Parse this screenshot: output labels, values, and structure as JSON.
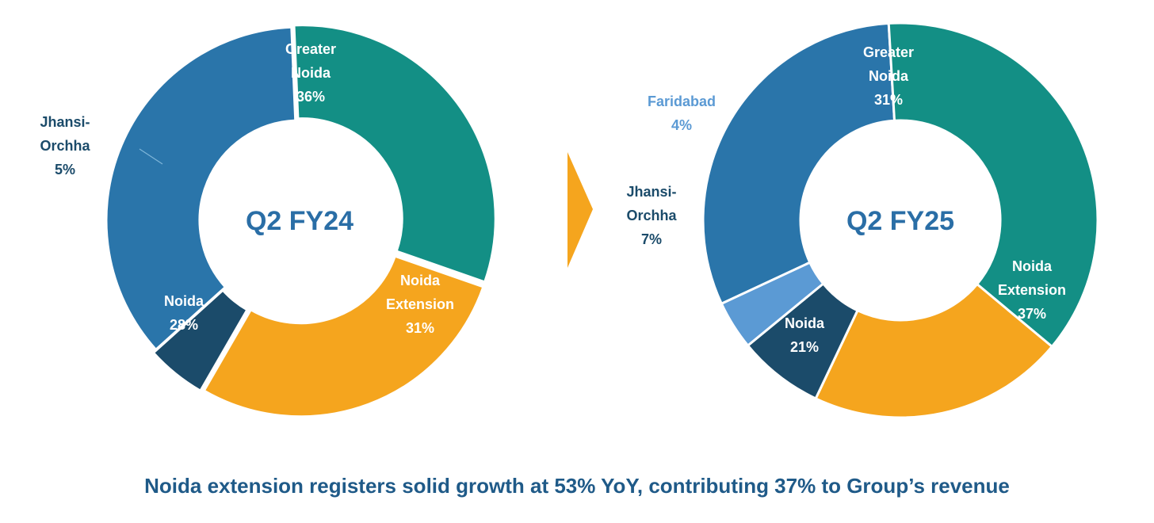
{
  "caption": "Noida extension registers solid growth at 53% YoY, contributing 37% to Group’s revenue",
  "colors": {
    "greater_noida": "#2a75aa",
    "noida_extension": "#138f85",
    "noida": "#f5a51e",
    "jhansi_orchha": "#1b4b6a",
    "faridabad": "#5b9ad4",
    "arrow": "#f5a51e",
    "center_text": "#2a6ea6",
    "caption": "#1f5a88"
  },
  "chart_data": [
    {
      "type": "pie",
      "center_label": "Q2 FY24",
      "slices": [
        {
          "name": [
            "Greater",
            "Noida"
          ],
          "value": 36,
          "label": "36%",
          "color": "#2a75aa"
        },
        {
          "name": [
            "Noida",
            "Extension"
          ],
          "value": 31,
          "label": "31%",
          "color": "#138f85"
        },
        {
          "name": [
            "Noida"
          ],
          "value": 28,
          "label": "28%",
          "color": "#f5a51e"
        },
        {
          "name": [
            "Jhansi-",
            "Orchha"
          ],
          "value": 5,
          "label": "5%",
          "color": "#1b4b6a"
        }
      ]
    },
    {
      "type": "pie",
      "center_label": "Q2 FY25",
      "slices": [
        {
          "name": [
            "Greater",
            "Noida"
          ],
          "value": 31,
          "label": "31%",
          "color": "#2a75aa"
        },
        {
          "name": [
            "Noida",
            "Extension"
          ],
          "value": 37,
          "label": "37%",
          "color": "#138f85"
        },
        {
          "name": [
            "Noida"
          ],
          "value": 21,
          "label": "21%",
          "color": "#f5a51e"
        },
        {
          "name": [
            "Jhansi-",
            "Orchha"
          ],
          "value": 7,
          "label": "7%",
          "color": "#1b4b6a"
        },
        {
          "name": [
            "Faridabad"
          ],
          "value": 4,
          "label": "4%",
          "color": "#5b9ad4"
        }
      ]
    }
  ]
}
